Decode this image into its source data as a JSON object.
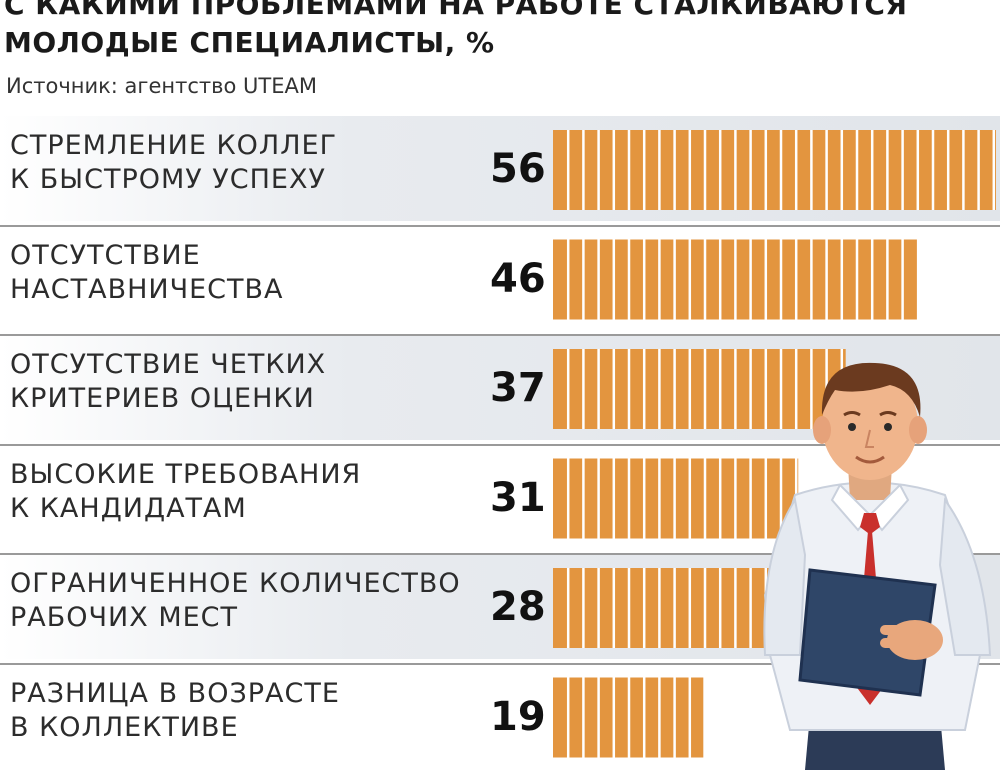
{
  "header": {
    "title": "С КАКИМИ ПРОБЛЕМАМИ НА РАБОТЕ СТАЛКИВАЮТСЯ МОЛОДЫЕ СПЕЦИАЛИСТЫ, %",
    "source": "Источник: агентство UTEAM"
  },
  "chart_data": {
    "type": "bar",
    "orientation": "horizontal",
    "title": "С КАКИМИ ПРОБЛЕМАМИ НА РАБОТЕ СТАЛКИВАЮТСЯ МОЛОДЫЕ СПЕЦИАЛИСТЫ, %",
    "categories": [
      "СТРЕМЛЕНИЕ КОЛЛЕГ\nК БЫСТРОМУ УСПЕХУ",
      "ОТСУТСТВИЕ\nНАСТАВНИЧЕСТВА",
      "ОТСУТСТВИЕ ЧЕТКИХ\nКРИТЕРИЕВ ОЦЕНКИ",
      "ВЫСОКИЕ ТРЕБОВАНИЯ\nК КАНДИДАТАМ",
      "ОГРАНИЧЕННОЕ КОЛИЧЕСТВО\nРАБОЧИХ МЕСТ",
      "РАЗНИЦА В ВОЗРАСТЕ\nВ КОЛЛЕКТИВЕ"
    ],
    "values": [
      56,
      46,
      37,
      31,
      28,
      19
    ],
    "value_labels": [
      "56",
      "46",
      "37",
      "31",
      "28",
      "19"
    ],
    "xlim": [
      0,
      56
    ],
    "bar_color": "#e3953f",
    "grid": false
  }
}
